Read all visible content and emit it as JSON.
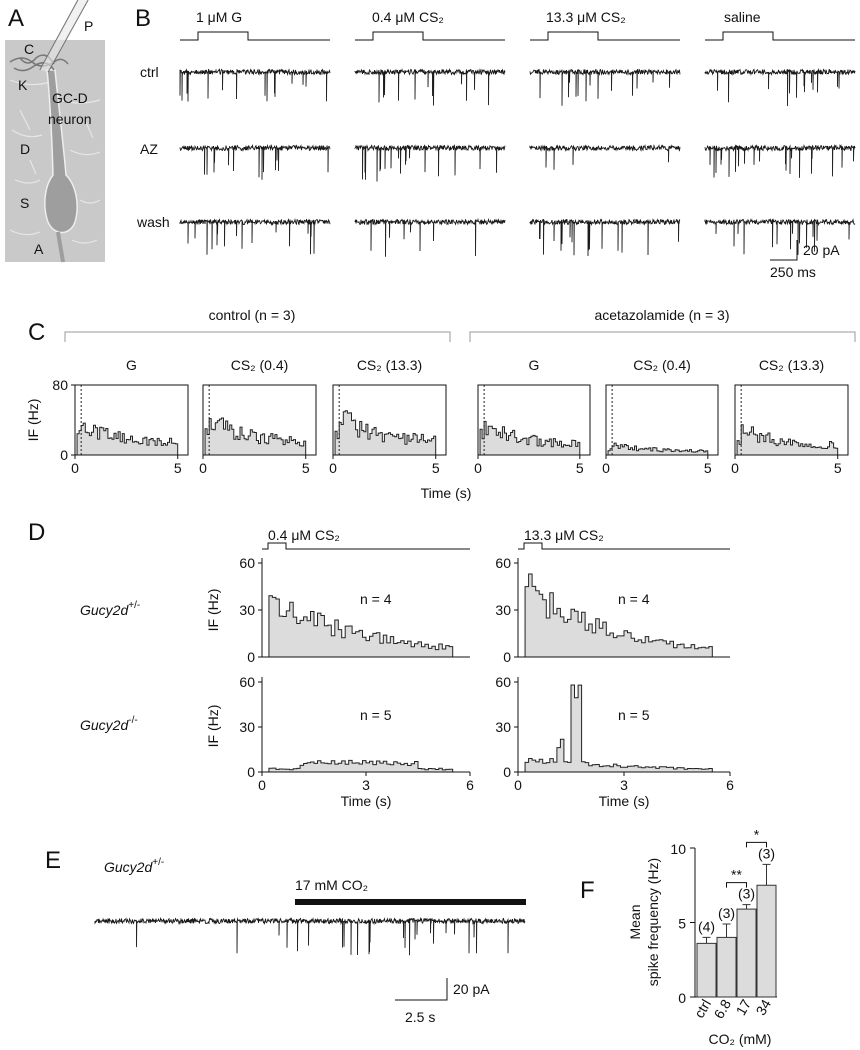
{
  "A": {
    "label": "A",
    "texts": {
      "P": "P",
      "C": "C",
      "K": "K",
      "neuron1": "GC-D",
      "neuron2": "neuron",
      "D": "D",
      "S": "S",
      "A": "A"
    }
  },
  "B": {
    "label": "B",
    "stimuli": [
      "1 μM G",
      "0.4 μM CS₂",
      "13.3 μM CS₂",
      "saline"
    ],
    "rows": [
      "ctrl",
      "AZ",
      "wash"
    ],
    "scale": {
      "y": "20 pA",
      "x": "250 ms"
    }
  },
  "C": {
    "label": "C",
    "groups": [
      {
        "title": "control (n = 3)",
        "plots": [
          "G",
          "CS₂ (0.4)",
          "CS₂ (13.3)"
        ]
      },
      {
        "title": "acetazolamide (n = 3)",
        "plots": [
          "G",
          "CS₂ (0.4)",
          "CS₂ (13.3)"
        ]
      }
    ],
    "ylabel": "IF (Hz)",
    "ylim": [
      0,
      80
    ],
    "yticks": [
      0,
      80
    ],
    "xlim": [
      0,
      5.5
    ],
    "xticks": [
      0,
      5
    ],
    "xlabel": "Time (s)"
  },
  "D": {
    "label": "D",
    "stimuli": [
      "0.4 μM CS₂",
      "13.3 μM CS₂"
    ],
    "rows": [
      {
        "gene": "Gucy2d",
        "genotype": "+/-",
        "n": "n = 4"
      },
      {
        "gene": "Gucy2d",
        "genotype": "-/-",
        "n": "n = 5"
      }
    ],
    "ylabel": "IF (Hz)",
    "ylim": [
      0,
      60
    ],
    "yticks": [
      0,
      30,
      60
    ],
    "xlim": [
      0,
      6
    ],
    "xticks": [
      0,
      3,
      6
    ],
    "xlabel": "Time (s)"
  },
  "E": {
    "label": "E",
    "gene": "Gucy2d",
    "genotype": "+/-",
    "stimulus": "17 mM CO₂",
    "scale": {
      "y": "20 pA",
      "x": "2.5 s"
    }
  },
  "chart_data": {
    "type": "bar",
    "label": "F",
    "categories": [
      "ctrl",
      "6.8",
      "17",
      "34"
    ],
    "values": [
      3.6,
      4.0,
      5.9,
      7.5
    ],
    "errors": [
      0.4,
      0.9,
      0.3,
      1.4
    ],
    "n_labels": [
      "(4)",
      "(3)",
      "(3)",
      "(3)"
    ],
    "significance": [
      {
        "from": 1,
        "to": 2,
        "label": "**"
      },
      {
        "from": 2,
        "to": 3,
        "label": "*"
      }
    ],
    "ylabel": [
      "Mean",
      "spike frequency (Hz)"
    ],
    "xlabel": "CO₂ (mM)",
    "ylim": [
      0,
      10
    ],
    "yticks": [
      0,
      5,
      10
    ],
    "color": "#dcdcdc"
  }
}
